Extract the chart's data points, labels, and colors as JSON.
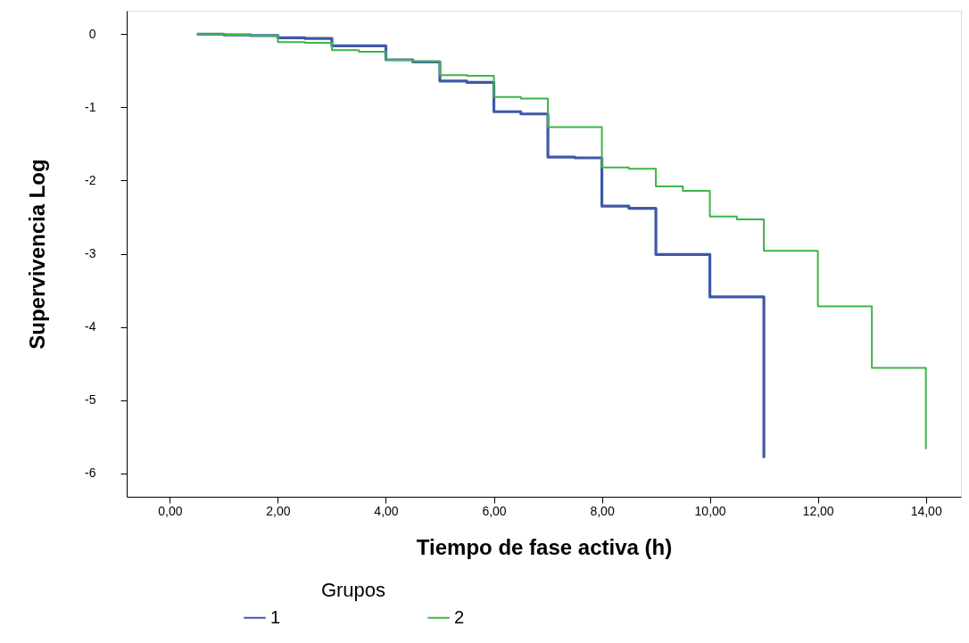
{
  "chart_data": {
    "type": "step",
    "xlabel": "Tiempo de fase activa (h)",
    "ylabel": "Supervivencia Log",
    "legend_title": "Grupos",
    "xlim": [
      -0.8,
      14.65
    ],
    "ylim": [
      -6.32,
      0.32
    ],
    "xticks": [
      {
        "value": 0,
        "label": "0,00"
      },
      {
        "value": 2,
        "label": "2,00"
      },
      {
        "value": 4,
        "label": "4,00"
      },
      {
        "value": 6,
        "label": "6,00"
      },
      {
        "value": 8,
        "label": "8,00"
      },
      {
        "value": 10,
        "label": "10,00"
      },
      {
        "value": 12,
        "label": "12,00"
      },
      {
        "value": 14,
        "label": "14,00"
      }
    ],
    "yticks": [
      0,
      -1,
      -2,
      -3,
      -4,
      -5,
      -6
    ],
    "grid": false,
    "legend": "bottom",
    "line_style": "solid",
    "marker": "none",
    "series": [
      {
        "name": "1",
        "color": "#3f58a8",
        "x": [
          0.5,
          1,
          1.5,
          2,
          2.5,
          3,
          4,
          4.5,
          5,
          5.5,
          6,
          6.5,
          7,
          7.5,
          8,
          8.5,
          9,
          10,
          11
        ],
        "values": [
          0,
          -0.01,
          -0.02,
          -0.05,
          -0.06,
          -0.16,
          -0.35,
          -0.38,
          -0.64,
          -0.66,
          -1.06,
          -1.09,
          -1.68,
          -1.69,
          -2.35,
          -2.38,
          -3.01,
          -3.59,
          -5.79
        ]
      },
      {
        "name": "2",
        "color": "#3cb54a",
        "x": [
          0.5,
          1,
          1.5,
          2,
          2.5,
          3,
          3.5,
          4,
          4.5,
          5,
          5.5,
          6,
          6.5,
          7,
          8,
          8.5,
          9,
          9.5,
          10,
          10.5,
          11,
          12,
          13,
          14
        ],
        "values": [
          0,
          -0.01,
          -0.02,
          -0.11,
          -0.12,
          -0.22,
          -0.24,
          -0.35,
          -0.37,
          -0.56,
          -0.57,
          -0.86,
          -0.88,
          -1.27,
          -1.82,
          -1.84,
          -2.08,
          -2.14,
          -2.49,
          -2.53,
          -2.96,
          -3.72,
          -4.56,
          -5.67
        ]
      }
    ]
  }
}
